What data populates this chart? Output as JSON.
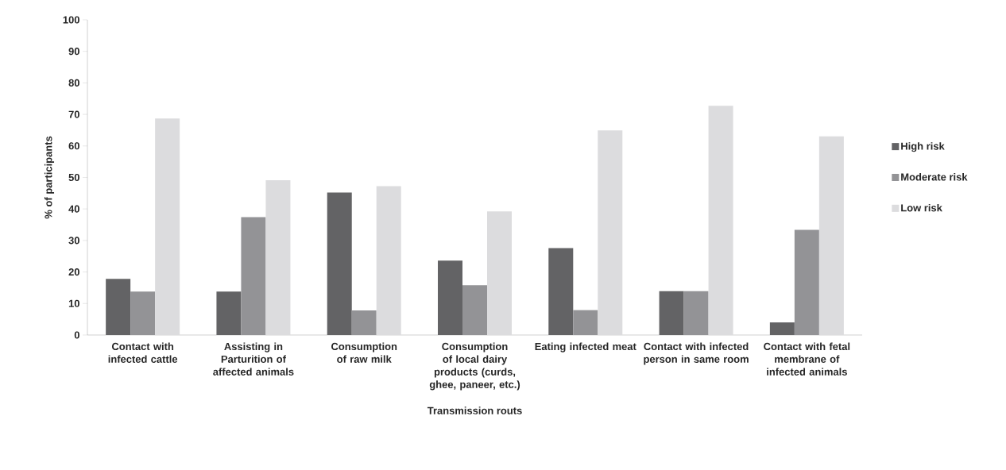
{
  "chart_data": {
    "type": "bar",
    "xlabel": "Transmission routs",
    "ylabel": "% of participants",
    "categories": [
      "Contact with infected cattle",
      "Assisting  in Parturition of affected animals",
      "Consumption of raw milk",
      "Consumption of local dairy products (curds, ghee, paneer, etc.)",
      "Eating infected meat",
      "Contact with infected person in same room",
      "Contact with fetal membrane of infected animals"
    ],
    "series": [
      {
        "name": "High risk",
        "color": "#636365",
        "values": [
          17.8,
          13.8,
          45.2,
          23.6,
          27.6,
          13.9,
          4.0
        ]
      },
      {
        "name": "Moderate risk",
        "color": "#939396",
        "values": [
          13.8,
          37.4,
          7.8,
          15.8,
          7.9,
          13.9,
          33.4
        ]
      },
      {
        "name": "Low risk",
        "color": "#dcdcde",
        "values": [
          68.7,
          49.1,
          47.2,
          39.2,
          64.9,
          72.7,
          63.0
        ]
      }
    ],
    "ylim": [
      0,
      100
    ],
    "yticks": [
      0,
      10,
      20,
      30,
      40,
      50,
      60,
      70,
      80,
      90,
      100
    ],
    "grid": false,
    "legend": "right"
  }
}
